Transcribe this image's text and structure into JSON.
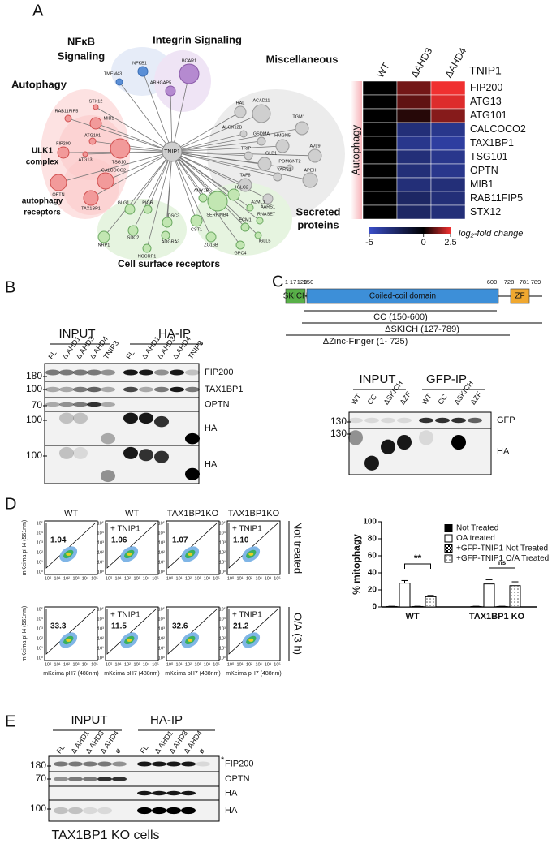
{
  "panel_a": {
    "letter": "A",
    "network": {
      "center": "TNIP1",
      "nodes": [
        "NFKB1",
        "TMEM43",
        "BCAR1",
        "ARHGAP5",
        "HAL",
        "ACAD11",
        "ALOX12B",
        "HMGN5",
        "TGM1",
        "GSDMA",
        "TRIP",
        "GLB1",
        "AVL9",
        "POMGNT2",
        "YARS1",
        "APEH",
        "TAF8",
        "AARS1",
        "STX12",
        "MIB1",
        "RAB11FIP5",
        "ATG101",
        "FIP200",
        "ATG13",
        "TSG101",
        "OPTN",
        "CALCOCO2",
        "TAX1BP1",
        "AMY1B",
        "IGLC2",
        "A2ML1",
        "SERPINB4",
        "RNASE7",
        "ECM1",
        "CST1",
        "ZG16B",
        "IGLL5",
        "GPC4",
        "GLG1",
        "PIGR",
        "NRP1",
        "SDC2",
        "DSC3",
        "ADGRA3",
        "NCCRP1"
      ],
      "groups": [
        [
          "NFκB",
          "Signaling"
        ],
        [
          "Integrin Signaling"
        ],
        [
          "Miscellaneous"
        ],
        [
          "Autophagy"
        ],
        [
          "ULK1",
          "complex"
        ],
        [
          "autophagy",
          "receptors"
        ],
        [
          "Secreted",
          "proteins"
        ],
        [
          "Cell surface receptors"
        ]
      ]
    },
    "heatmap": {
      "title": "TNIP1",
      "columns": [
        "WT",
        "ΔAHD3",
        "ΔAHD4"
      ],
      "rows": [
        "FIP200",
        "ATG13",
        "ATG101",
        "CALCOCO2",
        "TAX1BP1",
        "TSG101",
        "OPTN",
        "MIB1",
        "RAB11FIP5",
        "STX12"
      ],
      "row_group": "Autophagy",
      "values": [
        [
          0,
          1.2,
          2.5
        ],
        [
          0,
          1,
          2.3
        ],
        [
          0,
          0.4,
          1.4
        ],
        [
          0,
          -3,
          -3.5
        ],
        [
          0,
          -3.5,
          -4
        ],
        [
          0,
          -3,
          -3.5
        ],
        [
          0,
          -3,
          -3.5
        ],
        [
          0,
          -3,
          -3
        ],
        [
          0,
          -2.5,
          -3
        ],
        [
          0,
          -2.5,
          -3
        ]
      ],
      "scale": {
        "lim": [
          -5,
          2.5
        ],
        "ticks": [
          -5,
          0,
          2.5
        ],
        "label": "log₂-fold change"
      }
    }
  },
  "panel_b": {
    "letter": "B",
    "groups": [
      "INPUT",
      "HA-IP"
    ],
    "lanes": [
      "FL",
      "Δ AHD1",
      "Δ AHD3",
      "Δ AHD4",
      "TNIP3"
    ],
    "markers": [
      180,
      100,
      70,
      100,
      100
    ],
    "blots": [
      "FIP200",
      "TAX1BP1",
      "OPTN",
      "HA",
      "HA"
    ]
  },
  "panel_c": {
    "letter": "C",
    "positions": [
      1,
      17,
      120,
      150,
      600,
      728,
      781,
      789
    ],
    "domains": [
      "SKICH",
      "Coiled-coil domain",
      "ZF"
    ],
    "constructs": [
      "CC (150-600)",
      "ΔSKICH (127-789)",
      "ΔZinc-Finger (1- 725)"
    ],
    "groups": [
      "INPUT",
      "GFP-IP"
    ],
    "lanes": [
      "WT",
      "CC",
      "ΔSKICH",
      "ΔZF"
    ],
    "markers": [
      130,
      130
    ],
    "blots": [
      "GFP",
      "HA"
    ]
  },
  "panel_d": {
    "letter": "D",
    "flow": {
      "columns": [
        "WT",
        "WT",
        "TAX1BP1KO",
        "TAX1BP1KO"
      ],
      "treatment_label": "+ TNIP1",
      "rows": [
        "Not treated",
        "O/A (3 h)"
      ],
      "values": [
        [
          "1.04",
          "1.06",
          "1.07",
          "1.10"
        ],
        [
          "33.3",
          "11.5",
          "32.6",
          "21.2"
        ]
      ],
      "y_label": "mKeima pH4 (561nm)",
      "x_label": "mKeima pH7 (488nm)",
      "ticks": [
        "10⁰",
        "10¹",
        "10²",
        "10³",
        "10⁴",
        "10⁵"
      ]
    },
    "bar_chart": {
      "type": "bar",
      "y_label": "% mitophagy",
      "categories": [
        "WT",
        "TAX1BP1 KO"
      ],
      "series": [
        {
          "name": "Not Treated",
          "color": "#000000",
          "values": [
            0.5,
            0.5
          ],
          "errors": [
            0.3,
            0.3
          ]
        },
        {
          "name": "OA treated",
          "color": "#ffffff",
          "values": [
            28,
            27
          ],
          "errors": [
            3,
            5
          ]
        },
        {
          "name": "+GFP-TNIP1 Not Treated",
          "color": "#000000",
          "values": [
            0.5,
            0.5
          ],
          "errors": [
            0.3,
            0.3
          ]
        },
        {
          "name": "+GFP-TNIP1 O/A Treated",
          "color": "#555555",
          "values": [
            12,
            25
          ],
          "errors": [
            1.5,
            4.5
          ]
        }
      ],
      "ylim": [
        0,
        100
      ],
      "yticks": [
        0,
        20,
        40,
        60,
        80,
        100
      ],
      "annotations": [
        "**",
        "ns"
      ]
    }
  },
  "panel_e": {
    "letter": "E",
    "groups": [
      "INPUT",
      "HA-IP"
    ],
    "lanes": [
      "FL",
      "Δ AHD1",
      "Δ AHD3",
      "Δ AHD4",
      "ø"
    ],
    "markers": [
      180,
      70,
      100
    ],
    "blots": [
      "FIP200",
      "OPTN",
      "HA",
      "HA"
    ],
    "asterisk": "*",
    "caption": "TAX1BP1 KO cells"
  }
}
